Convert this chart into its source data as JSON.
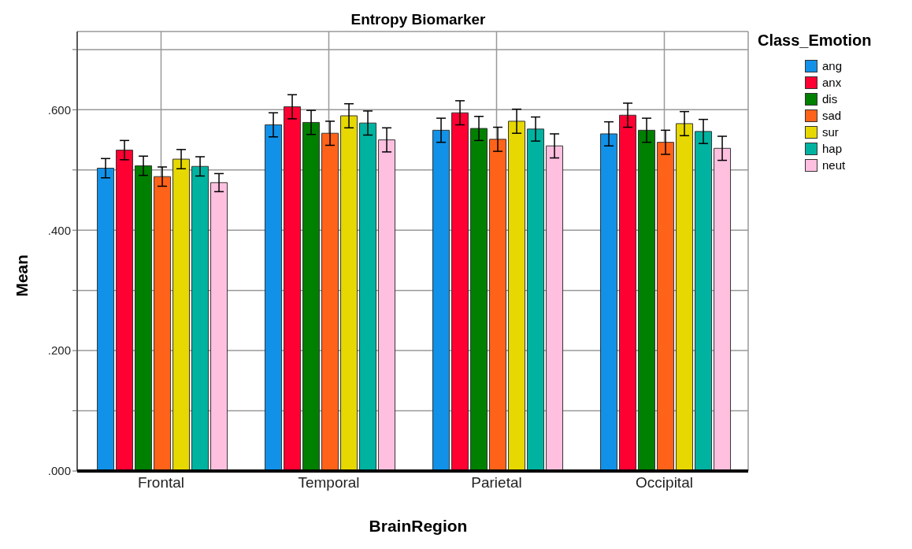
{
  "chart_data": {
    "type": "bar",
    "title": "Entropy Biomarker",
    "xlabel": "BrainRegion",
    "ylabel": "Mean",
    "legend_title": "Class_Emotion",
    "categories": [
      "Frontal",
      "Temporal",
      "Parietal",
      "Occipital"
    ],
    "series": [
      {
        "name": "ang",
        "color": "#1192e8",
        "values": [
          0.503,
          0.575,
          0.566,
          0.56
        ],
        "errors": [
          0.016,
          0.02,
          0.02,
          0.02
        ]
      },
      {
        "name": "anx",
        "color": "#ff0033",
        "values": [
          0.533,
          0.605,
          0.595,
          0.591
        ],
        "errors": [
          0.016,
          0.02,
          0.02,
          0.02
        ]
      },
      {
        "name": "dis",
        "color": "#008000",
        "values": [
          0.507,
          0.579,
          0.569,
          0.566
        ],
        "errors": [
          0.016,
          0.02,
          0.02,
          0.02
        ]
      },
      {
        "name": "sad",
        "color": "#ff6319",
        "values": [
          0.489,
          0.561,
          0.551,
          0.546
        ],
        "errors": [
          0.016,
          0.02,
          0.02,
          0.02
        ]
      },
      {
        "name": "sur",
        "color": "#e6d800",
        "values": [
          0.518,
          0.59,
          0.581,
          0.577
        ],
        "errors": [
          0.016,
          0.02,
          0.02,
          0.02
        ]
      },
      {
        "name": "hap",
        "color": "#00b3a0",
        "values": [
          0.506,
          0.578,
          0.568,
          0.564
        ],
        "errors": [
          0.016,
          0.02,
          0.02,
          0.02
        ]
      },
      {
        "name": "neut",
        "color": "#ffc0e0",
        "values": [
          0.479,
          0.55,
          0.54,
          0.536
        ],
        "errors": [
          0.015,
          0.02,
          0.02,
          0.02
        ]
      }
    ],
    "ylim": [
      0,
      0.73
    ],
    "yticks": [
      {
        "value": 0,
        "label": ".000"
      },
      {
        "value": 0.1,
        "label": null
      },
      {
        "value": 0.2,
        "label": ".200"
      },
      {
        "value": 0.3,
        "label": null
      },
      {
        "value": 0.4,
        "label": ".400"
      },
      {
        "value": 0.5,
        "label": null
      },
      {
        "value": 0.6,
        "label": ".600"
      },
      {
        "value": 0.7,
        "label": null
      }
    ],
    "grid": true,
    "legend": "top right"
  }
}
